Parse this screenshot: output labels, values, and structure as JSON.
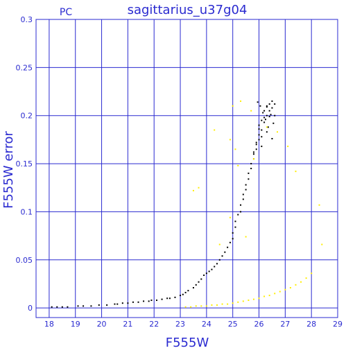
{
  "chart_data": {
    "type": "scatter",
    "title": "sagittarius_u37g04",
    "corner_label": "PC",
    "xlabel": "F555W",
    "ylabel": "F555W error",
    "xlim": [
      17.5,
      29
    ],
    "ylim": [
      -0.01,
      0.3
    ],
    "x_ticks": [
      18,
      19,
      20,
      21,
      22,
      23,
      24,
      25,
      26,
      27,
      28,
      29
    ],
    "y_ticks": [
      0,
      0.05,
      0.1,
      0.15,
      0.2,
      0.25,
      0.3
    ],
    "grid": true,
    "colors": {
      "axes": "#2a2ad0",
      "grid": "#2a2ad0",
      "series_black": "#000000",
      "series_yellow": "#ffee00"
    },
    "series": [
      {
        "color": "#000000",
        "x": [
          18.1,
          18.3,
          18.5,
          18.7,
          19.1,
          19.3,
          19.6,
          19.9,
          20.2,
          20.5,
          20.6,
          20.8,
          21.0,
          21.2,
          21.4,
          21.6,
          21.8,
          21.9,
          22.1,
          22.3,
          22.5,
          22.6,
          22.8,
          23.0,
          23.1,
          23.2,
          23.3,
          23.5,
          23.6,
          23.7,
          23.8,
          23.9,
          24.0,
          24.1,
          24.2,
          24.3,
          24.4,
          24.5,
          24.6,
          24.7,
          24.8,
          24.9,
          25.0,
          25.0,
          25.1,
          25.1,
          25.2,
          25.3,
          25.3,
          25.4,
          25.4,
          25.5,
          25.5,
          25.6,
          25.6,
          25.7,
          25.7,
          25.8,
          25.8,
          25.9,
          25.9,
          26.0,
          26.0,
          26.0,
          26.1,
          26.1,
          26.2,
          26.2,
          26.3,
          26.3,
          26.4,
          26.4,
          26.5,
          26.5,
          26.6,
          25.95,
          26.05,
          26.15,
          26.25,
          26.35,
          26.45,
          26.55,
          25.9,
          26.1,
          26.3,
          26.5,
          26.0,
          26.2,
          26.4,
          25.8,
          26.6,
          26.1,
          26.3
        ],
        "y": [
          0.001,
          0.001,
          0.001,
          0.001,
          0.002,
          0.002,
          0.002,
          0.003,
          0.003,
          0.004,
          0.004,
          0.005,
          0.005,
          0.006,
          0.006,
          0.007,
          0.007,
          0.008,
          0.008,
          0.009,
          0.01,
          0.01,
          0.011,
          0.013,
          0.014,
          0.016,
          0.018,
          0.021,
          0.024,
          0.027,
          0.03,
          0.034,
          0.036,
          0.038,
          0.04,
          0.043,
          0.046,
          0.05,
          0.054,
          0.058,
          0.063,
          0.068,
          0.072,
          0.078,
          0.084,
          0.09,
          0.097,
          0.1,
          0.107,
          0.113,
          0.118,
          0.123,
          0.128,
          0.134,
          0.14,
          0.145,
          0.15,
          0.155,
          0.16,
          0.165,
          0.17,
          0.175,
          0.18,
          0.19,
          0.185,
          0.195,
          0.198,
          0.205,
          0.2,
          0.21,
          0.205,
          0.212,
          0.208,
          0.215,
          0.2,
          0.214,
          0.21,
          0.203,
          0.196,
          0.188,
          0.201,
          0.192,
          0.172,
          0.178,
          0.183,
          0.176,
          0.186,
          0.193,
          0.199,
          0.162,
          0.212,
          0.168,
          0.209
        ]
      },
      {
        "color": "#ffee00",
        "x": [
          23.2,
          23.4,
          23.6,
          23.8,
          24.0,
          24.2,
          24.4,
          24.6,
          24.8,
          25.0,
          25.2,
          25.4,
          25.6,
          25.8,
          26.0,
          26.2,
          26.4,
          26.6,
          26.8,
          27.0,
          27.2,
          27.4,
          27.6,
          27.8,
          28.0,
          24.3,
          24.9,
          25.3,
          25.1,
          25.7,
          26.3,
          27.4,
          28.3,
          28.4,
          24.9,
          25.5,
          25.2,
          25.0,
          26.7,
          27.1,
          23.5,
          23.7,
          24.5,
          25.8
        ],
        "y": [
          0.001,
          0.001,
          0.002,
          0.002,
          0.002,
          0.003,
          0.003,
          0.004,
          0.004,
          0.005,
          0.006,
          0.007,
          0.008,
          0.009,
          0.01,
          0.012,
          0.013,
          0.015,
          0.017,
          0.019,
          0.021,
          0.024,
          0.027,
          0.031,
          0.036,
          0.185,
          0.175,
          0.215,
          0.165,
          0.205,
          0.188,
          0.142,
          0.107,
          0.066,
          0.094,
          0.074,
          0.148,
          0.21,
          0.183,
          0.168,
          0.122,
          0.125,
          0.066,
          0.155
        ]
      }
    ]
  }
}
